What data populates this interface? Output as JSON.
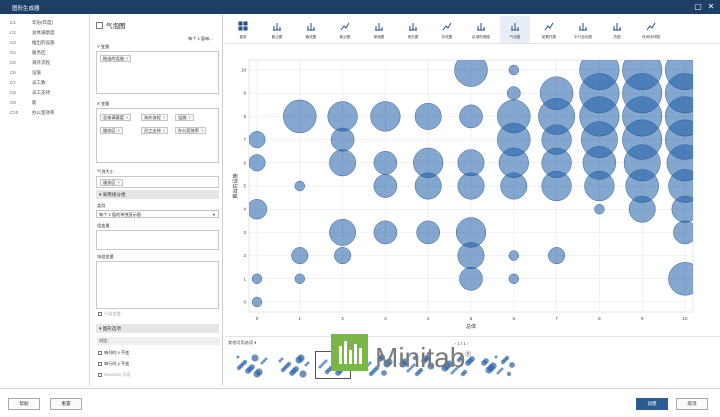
{
  "window": {
    "title": "图形生成器"
  },
  "variables": [
    {
      "col": "C1",
      "name": "年份(年度)"
    },
    {
      "col": "C2",
      "name": "总体满意度"
    },
    {
      "col": "C3",
      "name": "推出的设施"
    },
    {
      "col": "C4",
      "name": "服务区"
    },
    {
      "col": "C5",
      "name": "海外流程"
    },
    {
      "col": "C6",
      "name": "设施"
    },
    {
      "col": "C7",
      "name": "员工数"
    },
    {
      "col": "C8",
      "name": "员工支持"
    },
    {
      "col": "C9",
      "name": "薪"
    },
    {
      "col": "C10",
      "name": "办公室效率"
    }
  ],
  "options": {
    "title": "气泡图",
    "sort_label": "每个 x 值每...",
    "y_label": "Y 变量",
    "y_tag": "推出的设施",
    "x_label": "X 变量",
    "x_tags": [
      "总体满意度",
      "海外流程",
      "设施",
      "服务区",
      "员工支持",
      "办公室效率"
    ],
    "size_label": "气泡大小",
    "size_tag": "服务区",
    "grouping_header": "▾ 采用组分组",
    "grouping_sub": "类别",
    "grouping_select": "每个 x 值的单独显示图",
    "group_var_label": "组变量",
    "panel_var_label": "块组变量",
    "panel_check": "分组变量",
    "chart_opts_header": "▾ 图形选项",
    "chart_opts_sub": "对比",
    "check1": "每列的 x 不变",
    "check2": "每行的 y 不变",
    "check3": "Windows 页面"
  },
  "toolbar": [
    {
      "label": "直条",
      "icon": "grid-icon"
    },
    {
      "label": "散点图",
      "icon": "scatter-icon"
    },
    {
      "label": "箱线图",
      "icon": "boxplot-icon"
    },
    {
      "label": "散点图",
      "icon": "trend-icon"
    },
    {
      "label": "单值图",
      "icon": "bar-icon"
    },
    {
      "label": "条形图",
      "icon": "bar-icon"
    },
    {
      "label": "折线图",
      "icon": "line-icon"
    },
    {
      "label": "区域阶梯图",
      "icon": "area-icon"
    },
    {
      "label": "气泡图",
      "icon": "bubble-icon"
    },
    {
      "label": "帕累托图",
      "icon": "pareto-icon"
    },
    {
      "label": "平行坐标图",
      "icon": "parallel-icon"
    },
    {
      "label": "热图",
      "icon": "heatmap-icon"
    },
    {
      "label": "时间序列图",
      "icon": "timeseries-icon"
    }
  ],
  "chart_data": {
    "type": "scatter",
    "subtype": "bubble",
    "xlabel": "总体",
    "ylabel": "推出的设施",
    "xlim": [
      0,
      10
    ],
    "ylim": [
      0,
      10
    ],
    "x_ticks": [
      0,
      1,
      2,
      3,
      4,
      5,
      6,
      7,
      8,
      9,
      10
    ],
    "y_ticks": [
      0,
      1,
      2,
      3,
      4,
      5,
      6,
      7,
      8,
      9,
      10
    ],
    "grid": true,
    "bubble_color": "#1f5fa8",
    "points": [
      {
        "x": 0,
        "y": 0,
        "s": 3
      },
      {
        "x": 0,
        "y": 1,
        "s": 3
      },
      {
        "x": 0,
        "y": 4,
        "s": 6
      },
      {
        "x": 0,
        "y": 6,
        "s": 5
      },
      {
        "x": 0,
        "y": 7,
        "s": 5
      },
      {
        "x": 1,
        "y": 1,
        "s": 3
      },
      {
        "x": 1,
        "y": 2,
        "s": 5
      },
      {
        "x": 1,
        "y": 5,
        "s": 3
      },
      {
        "x": 1,
        "y": 8,
        "s": 10
      },
      {
        "x": 2,
        "y": 2,
        "s": 5
      },
      {
        "x": 2,
        "y": 3,
        "s": 8
      },
      {
        "x": 2,
        "y": 6,
        "s": 8
      },
      {
        "x": 2,
        "y": 7,
        "s": 7
      },
      {
        "x": 2,
        "y": 8,
        "s": 9
      },
      {
        "x": 3,
        "y": 3,
        "s": 7
      },
      {
        "x": 3,
        "y": 5,
        "s": 7
      },
      {
        "x": 3,
        "y": 6,
        "s": 7
      },
      {
        "x": 3,
        "y": 8,
        "s": 9
      },
      {
        "x": 4,
        "y": 3,
        "s": 7
      },
      {
        "x": 4,
        "y": 5,
        "s": 8
      },
      {
        "x": 4,
        "y": 6,
        "s": 9
      },
      {
        "x": 4,
        "y": 8,
        "s": 8
      },
      {
        "x": 5,
        "y": 1,
        "s": 7
      },
      {
        "x": 5,
        "y": 2,
        "s": 8
      },
      {
        "x": 5,
        "y": 3,
        "s": 9
      },
      {
        "x": 5,
        "y": 5,
        "s": 8
      },
      {
        "x": 5,
        "y": 6,
        "s": 8
      },
      {
        "x": 5,
        "y": 8,
        "s": 7
      },
      {
        "x": 5,
        "y": 10,
        "s": 10
      },
      {
        "x": 6,
        "y": 1,
        "s": 3
      },
      {
        "x": 6,
        "y": 2,
        "s": 3
      },
      {
        "x": 6,
        "y": 5,
        "s": 8
      },
      {
        "x": 6,
        "y": 6,
        "s": 9
      },
      {
        "x": 6,
        "y": 7,
        "s": 10
      },
      {
        "x": 6,
        "y": 8,
        "s": 10
      },
      {
        "x": 6,
        "y": 9,
        "s": 4
      },
      {
        "x": 6,
        "y": 10,
        "s": 3
      },
      {
        "x": 7,
        "y": 2,
        "s": 5
      },
      {
        "x": 7,
        "y": 5,
        "s": 9
      },
      {
        "x": 7,
        "y": 6,
        "s": 9
      },
      {
        "x": 7,
        "y": 7,
        "s": 9
      },
      {
        "x": 7,
        "y": 8,
        "s": 11
      },
      {
        "x": 7,
        "y": 9,
        "s": 10
      },
      {
        "x": 8,
        "y": 4,
        "s": 3
      },
      {
        "x": 8,
        "y": 5,
        "s": 9
      },
      {
        "x": 8,
        "y": 6,
        "s": 10
      },
      {
        "x": 8,
        "y": 7,
        "s": 11
      },
      {
        "x": 8,
        "y": 8,
        "s": 12
      },
      {
        "x": 8,
        "y": 9,
        "s": 12
      },
      {
        "x": 8,
        "y": 10,
        "s": 12
      },
      {
        "x": 9,
        "y": 4,
        "s": 8
      },
      {
        "x": 9,
        "y": 5,
        "s": 10
      },
      {
        "x": 9,
        "y": 6,
        "s": 11
      },
      {
        "x": 9,
        "y": 7,
        "s": 12
      },
      {
        "x": 9,
        "y": 8,
        "s": 12
      },
      {
        "x": 9,
        "y": 9,
        "s": 12
      },
      {
        "x": 9,
        "y": 10,
        "s": 12
      },
      {
        "x": 10,
        "y": 1,
        "s": 10
      },
      {
        "x": 10,
        "y": 3,
        "s": 7
      },
      {
        "x": 10,
        "y": 4,
        "s": 8
      },
      {
        "x": 10,
        "y": 5,
        "s": 10
      },
      {
        "x": 10,
        "y": 6,
        "s": 11
      },
      {
        "x": 10,
        "y": 7,
        "s": 12
      },
      {
        "x": 10,
        "y": 8,
        "s": 12
      },
      {
        "x": 10,
        "y": 9,
        "s": 12
      },
      {
        "x": 10,
        "y": 10,
        "s": 12
      }
    ]
  },
  "gallery": {
    "header": "其他可用选项",
    "pager": "1 / 1"
  },
  "logo": {
    "text": "Minitab",
    "mark": "®",
    "color": "#7ab648"
  },
  "buttons": {
    "help": "帮助",
    "reset": "重置",
    "create": "创建",
    "cancel": "取消"
  }
}
